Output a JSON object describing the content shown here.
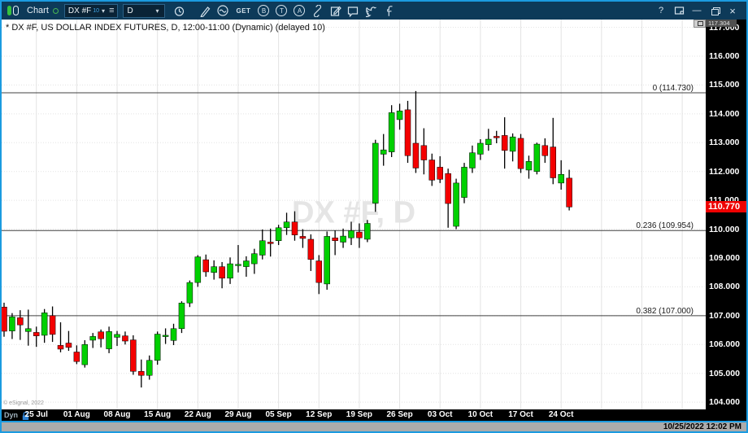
{
  "toolbar": {
    "app_label": "Chart",
    "symbol": "DX #F",
    "symbol_sup": "10",
    "interval": "D",
    "get_label": "GET",
    "circle_b": "B",
    "circle_t": "T",
    "circle_a": "A",
    "help_label": "?"
  },
  "icons": {
    "chevron_down": "▾",
    "hamburger": "≡",
    "minimize": "—",
    "close": "×"
  },
  "chart": {
    "title": "* DX #F, US DOLLAR INDEX FUTURES, D, 12:00-11:00 (Dynamic) (delayed 10)",
    "watermark": "DX #F, D",
    "copyright": "© eSignal, 2022",
    "cursor_price": "117.304",
    "last_price": {
      "text": "110.770",
      "value": 110.77,
      "bg": "#ee0000"
    }
  },
  "date_axis": {
    "dyn_label": "Dyn"
  },
  "status_bar": {
    "datetime": "10/25/2022 12:02 PM"
  },
  "colors": {
    "up": "#00d000",
    "down": "#f40000",
    "wick": "#000000",
    "grid": "#e3e3e3",
    "fib_line": "#404040",
    "axis_bg": "#000000",
    "accent_border": "#1b9be0",
    "toolbar_bg": "#0d3a59"
  },
  "chart_data": {
    "type": "candlestick",
    "symbol": "DX #F",
    "title": "DX #F, US DOLLAR INDEX FUTURES, Daily",
    "interval": "D",
    "ylim": [
      103.75,
      117.27
    ],
    "y_ticks": [
      117,
      116,
      115,
      114,
      113,
      112,
      111,
      110,
      109,
      108,
      107,
      106,
      105,
      104
    ],
    "grid": true,
    "x_labels": [
      {
        "text": "25 Jul",
        "date": "07-25"
      },
      {
        "text": "01 Aug",
        "date": "08-01"
      },
      {
        "text": "08 Aug",
        "date": "08-08"
      },
      {
        "text": "15 Aug",
        "date": "08-15"
      },
      {
        "text": "22 Aug",
        "date": "08-22"
      },
      {
        "text": "29 Aug",
        "date": "08-29"
      },
      {
        "text": "05 Sep",
        "date": "09-05"
      },
      {
        "text": "12 Sep",
        "date": "09-12"
      },
      {
        "text": "19 Sep",
        "date": "09-19"
      },
      {
        "text": "26 Sep",
        "date": "09-26"
      },
      {
        "text": "03 Oct",
        "date": "10-03"
      },
      {
        "text": "10 Oct",
        "date": "10-10"
      },
      {
        "text": "17 Oct",
        "date": "10-17"
      },
      {
        "text": "24 Oct",
        "date": "10-24"
      }
    ],
    "fib_levels": [
      {
        "label": "0 (114.730)",
        "price": 114.73
      },
      {
        "label": "0.236 (109.954)",
        "price": 109.954
      },
      {
        "label": "0.382 (107.000)",
        "price": 107.0
      }
    ],
    "candles": [
      [
        "07-19",
        107.3,
        107.45,
        106.27,
        106.46
      ],
      [
        "07-20",
        106.47,
        107.09,
        106.19,
        106.96
      ],
      [
        "07-21",
        106.93,
        107.19,
        106.16,
        106.68
      ],
      [
        "07-22",
        106.45,
        107.21,
        105.96,
        106.55
      ],
      [
        "07-25",
        106.42,
        106.62,
        105.92,
        106.3
      ],
      [
        "07-26",
        106.32,
        107.23,
        106.06,
        107.1
      ],
      [
        "07-27",
        107.0,
        107.32,
        106.09,
        106.35
      ],
      [
        "07-28",
        105.97,
        106.77,
        105.73,
        105.84
      ],
      [
        "07-29",
        106.05,
        106.47,
        105.78,
        105.9
      ],
      [
        "08-01",
        105.74,
        105.97,
        105.32,
        105.41
      ],
      [
        "08-02",
        105.3,
        106.15,
        105.2,
        106.0
      ],
      [
        "08-03",
        106.15,
        106.4,
        105.88,
        106.28
      ],
      [
        "08-04",
        106.44,
        106.52,
        105.9,
        106.2
      ],
      [
        "08-05",
        105.85,
        106.62,
        105.7,
        106.45
      ],
      [
        "08-08",
        106.25,
        106.47,
        105.95,
        106.35
      ],
      [
        "08-09",
        106.3,
        106.45,
        106.0,
        106.12
      ],
      [
        "08-10",
        106.16,
        106.32,
        104.95,
        105.07
      ],
      [
        "08-11",
        105.07,
        105.48,
        104.51,
        104.93
      ],
      [
        "08-12",
        104.93,
        105.62,
        104.78,
        105.45
      ],
      [
        "08-15",
        105.45,
        106.45,
        105.3,
        106.36
      ],
      [
        "08-16",
        106.3,
        106.56,
        106.02,
        106.32
      ],
      [
        "08-17",
        106.14,
        106.72,
        105.98,
        106.55
      ],
      [
        "08-18",
        106.55,
        107.5,
        106.4,
        107.44
      ],
      [
        "08-19",
        107.44,
        108.22,
        107.3,
        108.15
      ],
      [
        "08-22",
        108.15,
        109.1,
        108.0,
        109.04
      ],
      [
        "08-23",
        108.94,
        109.12,
        108.35,
        108.52
      ],
      [
        "08-24",
        108.5,
        108.92,
        108.25,
        108.7
      ],
      [
        "08-25",
        108.7,
        108.86,
        107.95,
        108.3
      ],
      [
        "08-26",
        108.3,
        109.02,
        108.1,
        108.8
      ],
      [
        "08-29",
        108.75,
        109.45,
        108.5,
        108.78
      ],
      [
        "08-30",
        108.7,
        109.06,
        108.35,
        108.9
      ],
      [
        "08-31",
        108.8,
        109.32,
        108.45,
        109.15
      ],
      [
        "09-01",
        109.1,
        109.99,
        108.95,
        109.6
      ],
      [
        "09-02",
        109.55,
        110.02,
        109.05,
        109.5
      ],
      [
        "09-05",
        109.6,
        110.15,
        109.45,
        110.05
      ],
      [
        "09-06",
        110.05,
        110.57,
        109.8,
        110.25
      ],
      [
        "09-07",
        110.25,
        110.62,
        109.6,
        109.8
      ],
      [
        "09-08",
        109.75,
        110.0,
        109.35,
        109.68
      ],
      [
        "09-09",
        109.65,
        109.82,
        108.55,
        108.95
      ],
      [
        "09-12",
        108.9,
        109.1,
        107.75,
        108.15
      ],
      [
        "09-13",
        108.1,
        109.92,
        107.9,
        109.75
      ],
      [
        "09-14",
        109.7,
        109.96,
        109.1,
        109.6
      ],
      [
        "09-15",
        109.55,
        110.02,
        109.35,
        109.76
      ],
      [
        "09-16",
        109.7,
        110.26,
        109.45,
        109.95
      ],
      [
        "09-19",
        109.9,
        110.2,
        109.35,
        109.7
      ],
      [
        "09-20",
        109.65,
        110.32,
        109.55,
        110.2
      ],
      [
        "09-21",
        110.9,
        113.1,
        110.6,
        112.98
      ],
      [
        "09-22",
        112.6,
        113.3,
        112.2,
        112.75
      ],
      [
        "09-23",
        112.68,
        114.3,
        112.5,
        114.04
      ],
      [
        "09-26",
        113.8,
        114.35,
        113.45,
        114.1
      ],
      [
        "09-27",
        114.14,
        114.45,
        112.3,
        112.55
      ],
      [
        "09-28",
        112.98,
        114.79,
        111.95,
        112.12
      ],
      [
        "09-29",
        112.9,
        113.5,
        111.9,
        112.4
      ],
      [
        "09-30",
        112.4,
        112.62,
        111.5,
        111.7
      ],
      [
        "10-03",
        112.15,
        112.53,
        111.6,
        111.73
      ],
      [
        "10-04",
        111.93,
        112.1,
        110.05,
        110.89
      ],
      [
        "10-05",
        110.1,
        111.75,
        110.0,
        111.6
      ],
      [
        "10-06",
        111.1,
        112.3,
        110.9,
        112.15
      ],
      [
        "10-07",
        112.12,
        112.9,
        111.95,
        112.65
      ],
      [
        "10-10",
        112.6,
        113.12,
        112.4,
        112.98
      ],
      [
        "10-11",
        112.93,
        113.48,
        112.72,
        113.12
      ],
      [
        "10-12",
        113.22,
        113.41,
        112.98,
        113.17
      ],
      [
        "10-13",
        113.25,
        113.88,
        112.1,
        112.73
      ],
      [
        "10-14",
        112.7,
        113.32,
        112.35,
        113.2
      ],
      [
        "10-17",
        113.15,
        113.3,
        111.95,
        112.1
      ],
      [
        "10-18",
        112.05,
        112.55,
        111.75,
        112.35
      ],
      [
        "10-19",
        112.0,
        113.0,
        111.9,
        112.95
      ],
      [
        "10-20",
        112.9,
        113.15,
        112.3,
        112.55
      ],
      [
        "10-21",
        112.85,
        113.86,
        111.56,
        111.78
      ],
      [
        "10-24",
        111.6,
        112.39,
        111.37,
        111.9
      ],
      [
        "10-25",
        111.77,
        112.06,
        110.65,
        110.77
      ]
    ]
  }
}
